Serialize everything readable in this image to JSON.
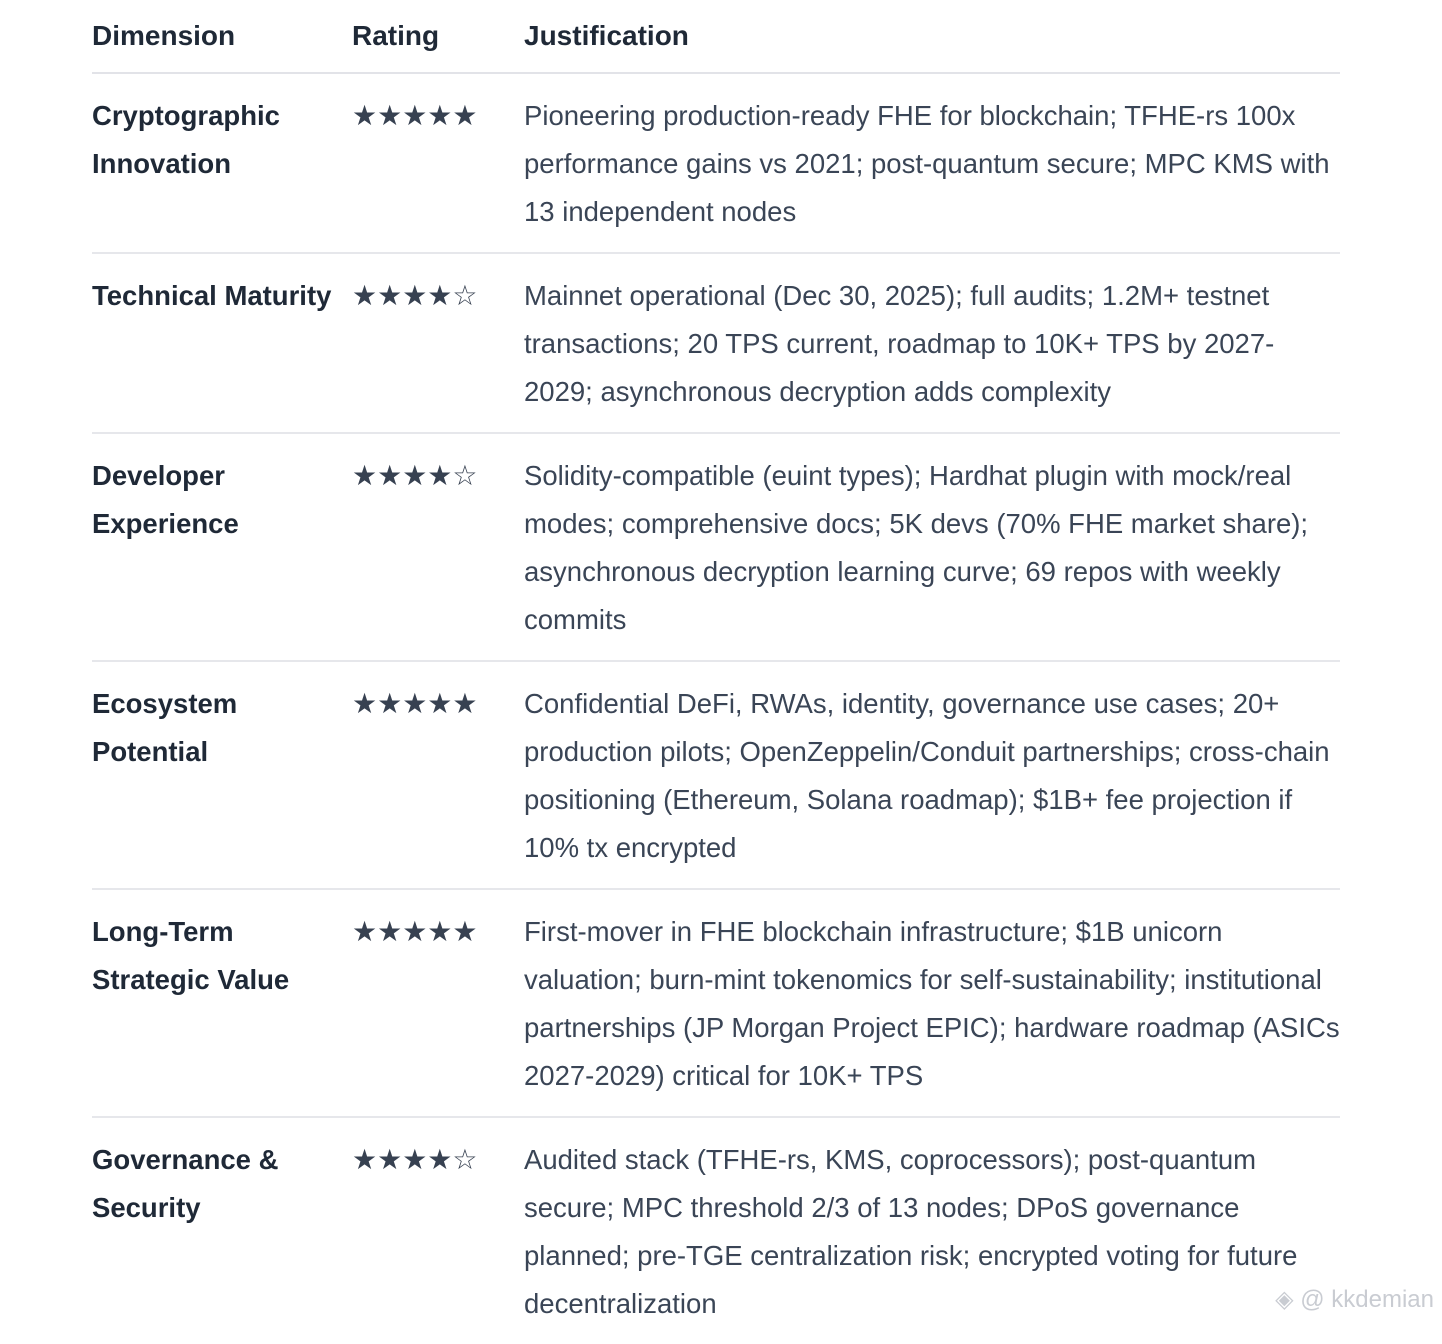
{
  "headers": {
    "dimension": "Dimension",
    "rating": "Rating",
    "justification": "Justification"
  },
  "rows": [
    {
      "dimension": "Cryptographic Innovation",
      "rating": 5,
      "stars": "★★★★★",
      "justification": "Pioneering production-ready FHE for blockchain; TFHE-rs 100x performance gains vs 2021; post-quantum secure; MPC KMS with 13 independent nodes"
    },
    {
      "dimension": "Technical Maturity",
      "rating": 4,
      "stars": "★★★★☆",
      "justification": "Mainnet operational (Dec 30, 2025); full audits; 1.2M+ testnet transactions; 20 TPS current, roadmap to 10K+ TPS by 2027-2029; asynchronous decryption adds complexity"
    },
    {
      "dimension": "Developer Experience",
      "rating": 4,
      "stars": "★★★★☆",
      "justification": "Solidity-compatible (euint types); Hardhat plugin with mock/real modes; comprehensive docs; 5K devs (70% FHE market share); asynchronous decryption learning curve; 69 repos with weekly commits"
    },
    {
      "dimension": "Ecosystem Potential",
      "rating": 5,
      "stars": "★★★★★",
      "justification": "Confidential DeFi, RWAs, identity, governance use cases; 20+ production pilots; OpenZeppelin/Conduit partnerships; cross-chain positioning (Ethereum, Solana roadmap); $1B+ fee projection if 10% tx encrypted"
    },
    {
      "dimension": "Long-Term Strategic Value",
      "rating": 5,
      "stars": "★★★★★",
      "justification": "First-mover in FHE blockchain infrastructure; $1B unicorn valuation; burn-mint tokenomics for self-sustainability; institutional partnerships (JP Morgan Project EPIC); hardware roadmap (ASICs 2027-2029) critical for 10K+ TPS"
    },
    {
      "dimension": "Governance & Security",
      "rating": 4,
      "stars": "★★★★☆",
      "justification": "Audited stack (TFHE-rs, KMS, coprocessors); post-quantum secure; MPC threshold 2/3 of 13 nodes; DPoS governance planned; pre-TGE centralization risk; encrypted voting for future decentralization"
    }
  ],
  "watermark": "@ kkdemian"
}
